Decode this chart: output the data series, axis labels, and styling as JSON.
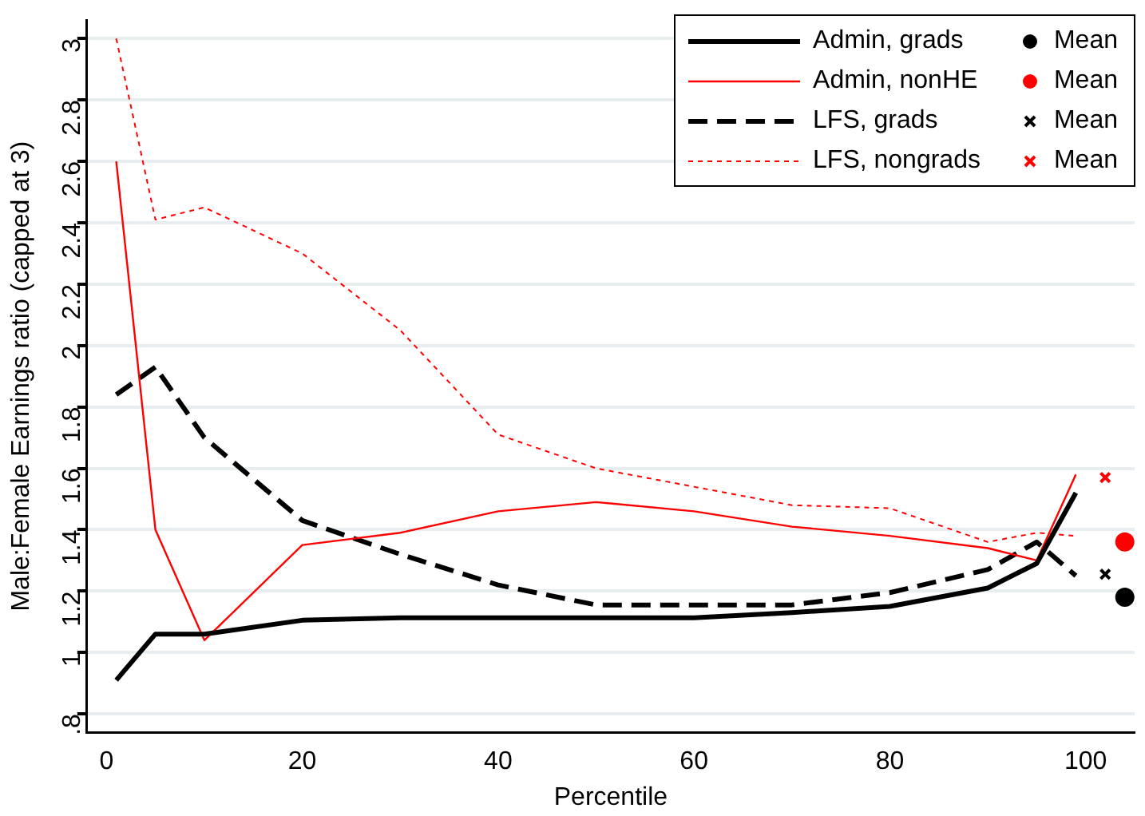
{
  "chart_data": {
    "type": "line",
    "xlabel": "Percentile",
    "ylabel": "Male:Female Earnings ratio (capped at 3)",
    "xlim": [
      -2,
      105
    ],
    "xticks": [
      0,
      20,
      40,
      60,
      80,
      100
    ],
    "ylim": [
      0.74,
      3.06
    ],
    "yticks": [
      {
        "value": 0.8,
        "label": ".8"
      },
      1,
      1.2,
      1.4,
      1.6,
      1.8,
      2,
      2.2,
      2.4,
      2.6,
      2.8,
      3
    ],
    "grid": "y",
    "legend": "top right",
    "marker": "none",
    "series": [
      {
        "name": "Admin, grads",
        "line_style": "solid",
        "color": "#000000",
        "x": [
          1,
          5,
          10,
          20,
          30,
          40,
          50,
          60,
          70,
          80,
          90,
          95,
          99
        ],
        "values": [
          0.91,
          1.06,
          1.06,
          1.105,
          1.113,
          1.113,
          1.113,
          1.113,
          1.13,
          1.15,
          1.21,
          1.29,
          1.52
        ]
      },
      {
        "name": "Admin, nonHE",
        "line_style": "solid",
        "color": "#ff0000",
        "x": [
          1,
          5,
          10,
          20,
          30,
          40,
          50,
          60,
          70,
          80,
          90,
          95,
          99
        ],
        "values": [
          2.6,
          1.4,
          1.04,
          1.35,
          1.39,
          1.46,
          1.49,
          1.46,
          1.41,
          1.38,
          1.34,
          1.3,
          1.58
        ]
      },
      {
        "name": "LFS, grads",
        "line_style": "dashed",
        "color": "#000000",
        "x": [
          1,
          5,
          10,
          20,
          30,
          40,
          50,
          60,
          70,
          80,
          90,
          95,
          99
        ],
        "values": [
          1.84,
          1.93,
          1.7,
          1.43,
          1.32,
          1.22,
          1.155,
          1.155,
          1.155,
          1.195,
          1.27,
          1.36,
          1.25
        ]
      },
      {
        "name": "LFS, nongrads",
        "line_style": "dotted",
        "color": "#ff0000",
        "x": [
          1,
          5,
          10,
          20,
          30,
          40,
          50,
          60,
          70,
          80,
          90,
          95,
          99
        ],
        "values": [
          3.0,
          2.41,
          2.45,
          2.3,
          2.05,
          1.71,
          1.6,
          1.54,
          1.48,
          1.47,
          1.36,
          1.39,
          1.38
        ]
      },
      {
        "name": "Mean",
        "type": "scatter",
        "marker": "circle",
        "color": "#000000",
        "x": [
          104
        ],
        "values": [
          1.18
        ]
      },
      {
        "name": "Mean",
        "type": "scatter",
        "marker": "circle",
        "color": "#ff0000",
        "x": [
          104
        ],
        "values": [
          1.36
        ]
      },
      {
        "name": "Mean",
        "type": "scatter",
        "marker": "cross",
        "color": "#000000",
        "x": [
          102
        ],
        "values": [
          1.255
        ]
      },
      {
        "name": "Mean",
        "type": "scatter",
        "marker": "cross",
        "color": "#ff0000",
        "x": [
          102
        ],
        "values": [
          1.57
        ]
      }
    ]
  }
}
